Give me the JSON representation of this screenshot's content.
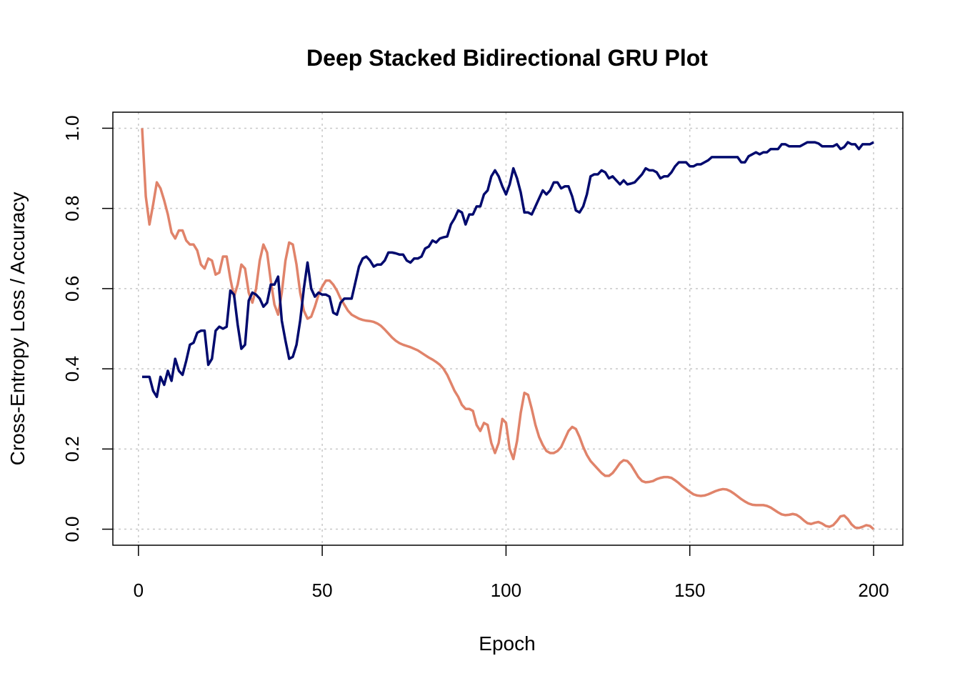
{
  "chart_data": {
    "type": "line",
    "title": "Deep Stacked Bidirectional GRU Plot",
    "x_label": "Epoch",
    "y_label": "Cross-Entropy Loss / Accuracy",
    "x": [
      1,
      2,
      3,
      4,
      5,
      6,
      7,
      8,
      9,
      10,
      11,
      12,
      13,
      14,
      15,
      16,
      17,
      18,
      19,
      20,
      21,
      22,
      23,
      24,
      25,
      26,
      27,
      28,
      29,
      30,
      31,
      32,
      33,
      34,
      35,
      36,
      37,
      38,
      39,
      40,
      41,
      42,
      43,
      44,
      45,
      46,
      47,
      48,
      49,
      50,
      51,
      52,
      53,
      54,
      55,
      56,
      57,
      58,
      59,
      60,
      61,
      62,
      63,
      64,
      65,
      66,
      67,
      68,
      69,
      70,
      71,
      72,
      73,
      74,
      75,
      76,
      77,
      78,
      79,
      80,
      81,
      82,
      83,
      84,
      85,
      86,
      87,
      88,
      89,
      90,
      91,
      92,
      93,
      94,
      95,
      96,
      97,
      98,
      99,
      100,
      101,
      102,
      103,
      104,
      105,
      106,
      107,
      108,
      109,
      110,
      111,
      112,
      113,
      114,
      115,
      116,
      117,
      118,
      119,
      120,
      121,
      122,
      123,
      124,
      125,
      126,
      127,
      128,
      129,
      130,
      131,
      132,
      133,
      134,
      135,
      136,
      137,
      138,
      139,
      140,
      141,
      142,
      143,
      144,
      145,
      146,
      147,
      148,
      149,
      150,
      151,
      152,
      153,
      154,
      155,
      156,
      157,
      158,
      159,
      160,
      161,
      162,
      163,
      164,
      165,
      166,
      167,
      168,
      169,
      170,
      171,
      172,
      173,
      174,
      175,
      176,
      177,
      178,
      179,
      180,
      181,
      182,
      183,
      184,
      185,
      186,
      187,
      188,
      189,
      190,
      191,
      192,
      193,
      194,
      195,
      196,
      197,
      198,
      199,
      200
    ],
    "series": [
      {
        "color": "#e0836a",
        "values": [
          1.0,
          0.83,
          0.76,
          0.81,
          0.865,
          0.85,
          0.82,
          0.785,
          0.74,
          0.725,
          0.745,
          0.745,
          0.72,
          0.71,
          0.71,
          0.695,
          0.66,
          0.65,
          0.675,
          0.67,
          0.635,
          0.64,
          0.68,
          0.68,
          0.625,
          0.58,
          0.61,
          0.66,
          0.65,
          0.59,
          0.565,
          0.6,
          0.67,
          0.71,
          0.69,
          0.62,
          0.56,
          0.535,
          0.59,
          0.67,
          0.715,
          0.71,
          0.66,
          0.59,
          0.545,
          0.525,
          0.53,
          0.555,
          0.585,
          0.605,
          0.62,
          0.62,
          0.61,
          0.595,
          0.575,
          0.56,
          0.545,
          0.535,
          0.53,
          0.525,
          0.522,
          0.52,
          0.519,
          0.517,
          0.513,
          0.507,
          0.498,
          0.488,
          0.478,
          0.47,
          0.464,
          0.46,
          0.457,
          0.454,
          0.45,
          0.446,
          0.44,
          0.434,
          0.428,
          0.423,
          0.417,
          0.41,
          0.4,
          0.385,
          0.365,
          0.345,
          0.33,
          0.31,
          0.3,
          0.3,
          0.295,
          0.26,
          0.245,
          0.265,
          0.26,
          0.215,
          0.19,
          0.215,
          0.275,
          0.265,
          0.2,
          0.175,
          0.22,
          0.29,
          0.34,
          0.335,
          0.3,
          0.26,
          0.23,
          0.21,
          0.195,
          0.19,
          0.19,
          0.195,
          0.205,
          0.225,
          0.245,
          0.255,
          0.25,
          0.23,
          0.205,
          0.185,
          0.17,
          0.16,
          0.15,
          0.14,
          0.133,
          0.133,
          0.14,
          0.152,
          0.165,
          0.172,
          0.17,
          0.16,
          0.145,
          0.13,
          0.12,
          0.117,
          0.118,
          0.12,
          0.125,
          0.128,
          0.13,
          0.13,
          0.128,
          0.122,
          0.115,
          0.107,
          0.1,
          0.093,
          0.087,
          0.084,
          0.083,
          0.084,
          0.087,
          0.091,
          0.095,
          0.098,
          0.1,
          0.099,
          0.095,
          0.089,
          0.082,
          0.075,
          0.069,
          0.064,
          0.061,
          0.06,
          0.06,
          0.06,
          0.058,
          0.054,
          0.048,
          0.042,
          0.037,
          0.035,
          0.036,
          0.038,
          0.036,
          0.03,
          0.022,
          0.015,
          0.013,
          0.016,
          0.018,
          0.014,
          0.008,
          0.006,
          0.01,
          0.02,
          0.032,
          0.034,
          0.025,
          0.012,
          0.004,
          0.003,
          0.006,
          0.01,
          0.008,
          0.0
        ]
      },
      {
        "color": "#000a6e",
        "values": [
          0.38,
          0.38,
          0.38,
          0.345,
          0.33,
          0.38,
          0.36,
          0.395,
          0.37,
          0.425,
          0.395,
          0.385,
          0.42,
          0.46,
          0.465,
          0.49,
          0.495,
          0.495,
          0.41,
          0.425,
          0.495,
          0.505,
          0.5,
          0.505,
          0.595,
          0.585,
          0.51,
          0.45,
          0.46,
          0.57,
          0.59,
          0.585,
          0.575,
          0.555,
          0.565,
          0.61,
          0.61,
          0.63,
          0.52,
          0.47,
          0.425,
          0.43,
          0.46,
          0.52,
          0.6,
          0.665,
          0.6,
          0.58,
          0.59,
          0.585,
          0.585,
          0.58,
          0.54,
          0.535,
          0.565,
          0.575,
          0.575,
          0.575,
          0.615,
          0.655,
          0.675,
          0.68,
          0.67,
          0.655,
          0.66,
          0.66,
          0.67,
          0.69,
          0.69,
          0.688,
          0.685,
          0.685,
          0.67,
          0.665,
          0.675,
          0.675,
          0.68,
          0.7,
          0.705,
          0.72,
          0.715,
          0.725,
          0.728,
          0.73,
          0.76,
          0.775,
          0.795,
          0.79,
          0.76,
          0.785,
          0.785,
          0.805,
          0.805,
          0.835,
          0.845,
          0.88,
          0.895,
          0.88,
          0.855,
          0.835,
          0.86,
          0.9,
          0.875,
          0.84,
          0.79,
          0.79,
          0.785,
          0.805,
          0.825,
          0.845,
          0.835,
          0.845,
          0.865,
          0.865,
          0.85,
          0.855,
          0.855,
          0.83,
          0.795,
          0.79,
          0.805,
          0.835,
          0.88,
          0.885,
          0.885,
          0.895,
          0.89,
          0.875,
          0.88,
          0.87,
          0.86,
          0.87,
          0.86,
          0.862,
          0.865,
          0.875,
          0.885,
          0.9,
          0.895,
          0.895,
          0.89,
          0.875,
          0.88,
          0.88,
          0.89,
          0.905,
          0.915,
          0.915,
          0.915,
          0.905,
          0.905,
          0.91,
          0.91,
          0.915,
          0.92,
          0.928,
          0.928,
          0.928,
          0.928,
          0.928,
          0.928,
          0.928,
          0.928,
          0.915,
          0.915,
          0.93,
          0.935,
          0.94,
          0.935,
          0.94,
          0.94,
          0.948,
          0.948,
          0.948,
          0.96,
          0.96,
          0.955,
          0.955,
          0.955,
          0.955,
          0.96,
          0.965,
          0.965,
          0.965,
          0.962,
          0.955,
          0.955,
          0.955,
          0.955,
          0.96,
          0.948,
          0.953,
          0.965,
          0.96,
          0.96,
          0.948,
          0.96,
          0.96,
          0.96,
          0.965
        ]
      }
    ],
    "xlim": [
      -6.96,
      207.96
    ],
    "ylim": [
      -0.04,
      1.04
    ],
    "xticks": [
      0,
      50,
      100,
      150,
      200
    ],
    "yticks": [
      {
        "value": 0,
        "label": "0.0"
      },
      0.2,
      0.4,
      0.6,
      0.8,
      {
        "value": 1,
        "label": "1.0"
      }
    ],
    "grid": true
  }
}
